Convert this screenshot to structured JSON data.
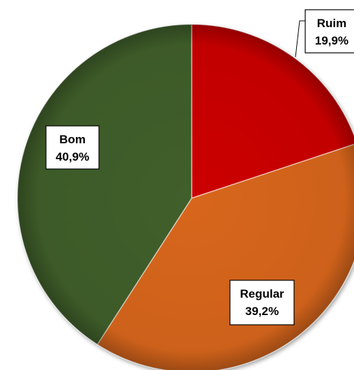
{
  "chart_data": {
    "type": "pie",
    "title": "",
    "slices": [
      {
        "label": "Ruim",
        "value": 19.9,
        "display": "19,9%",
        "color": "#cc0000"
      },
      {
        "label": "Regular",
        "value": 39.2,
        "display": "39,2%",
        "color": "#d8661a"
      },
      {
        "label": "Bom",
        "value": 40.9,
        "display": "40,9%",
        "color": "#3f5e2a"
      }
    ],
    "start_angle_deg": 0,
    "direction": "clockwise",
    "legend": "none",
    "labels": "data-labels-in-boxes"
  }
}
